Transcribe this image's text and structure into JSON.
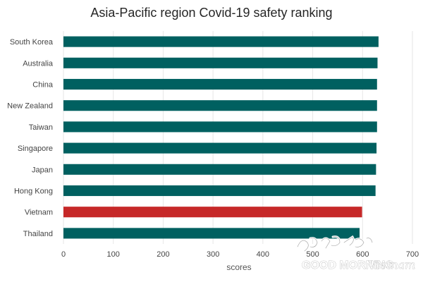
{
  "chart_data": {
    "type": "bar",
    "orientation": "horizontal",
    "title": "Asia-Pacific region Covid-19 safety ranking",
    "xlabel": "scores",
    "ylabel": "",
    "xlim": [
      0,
      700
    ],
    "xticks": [
      0,
      100,
      200,
      300,
      400,
      500,
      600,
      700
    ],
    "grid": "vertical",
    "categories": [
      "South Korea",
      "Australia",
      "China",
      "New Zealand",
      "Taiwan",
      "Singapore",
      "Japan",
      "Hong Kong",
      "Vietnam",
      "Thailand"
    ],
    "values": [
      632,
      630,
      629,
      629,
      629,
      628,
      627,
      626,
      599,
      594
    ],
    "colors": [
      "#006060",
      "#006060",
      "#006060",
      "#006060",
      "#006060",
      "#006060",
      "#006060",
      "#006060",
      "#c62828",
      "#006060"
    ],
    "highlight": "Vietnam"
  },
  "watermark": {
    "primary": "GOOD MORNING",
    "script": "Vietnam",
    "icon": "korean-calligraphy-logo"
  }
}
